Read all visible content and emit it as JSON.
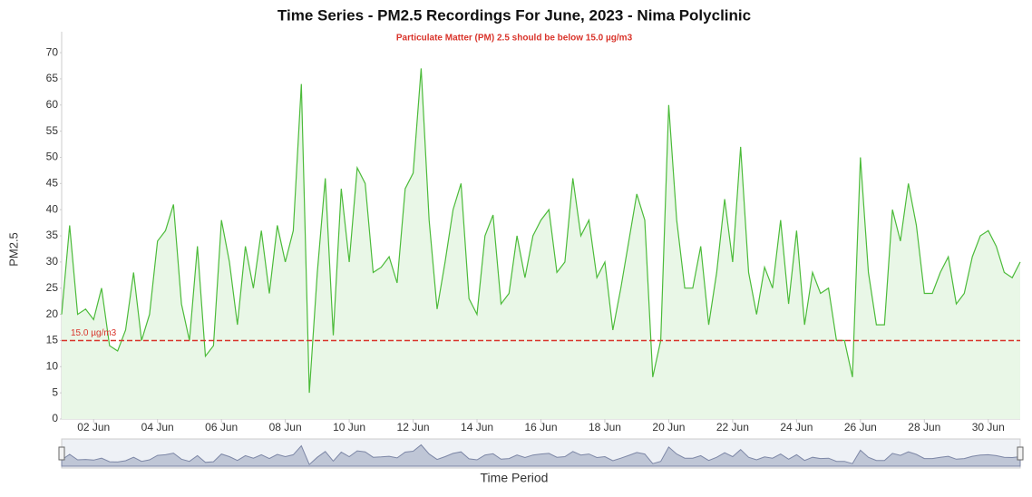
{
  "chart_data": {
    "type": "area",
    "title": "Time Series - PM2.5 Recordings For June, 2023 - Nima Polyclinic",
    "subtitle": "Particulate Matter (PM) 2.5 should be below 15.0 µg/m3",
    "y_label": "PM2.5",
    "x_label": "Time Period",
    "zoom_label": "30",
    "color": "#4cbb3a",
    "fill": "#e9f7e7",
    "threshold": {
      "value": 15,
      "label": "15.0 µg/m3",
      "color": "#d9342b"
    },
    "xlim": [
      1,
      31
    ],
    "xticks": [
      {
        "value": 2,
        "label": "02 Jun"
      },
      {
        "value": 4,
        "label": "04 Jun"
      },
      {
        "value": 6,
        "label": "06 Jun"
      },
      {
        "value": 8,
        "label": "08 Jun"
      },
      {
        "value": 10,
        "label": "10 Jun"
      },
      {
        "value": 12,
        "label": "12 Jun"
      },
      {
        "value": 14,
        "label": "14 Jun"
      },
      {
        "value": 16,
        "label": "16 Jun"
      },
      {
        "value": 18,
        "label": "18 Jun"
      },
      {
        "value": 20,
        "label": "20 Jun"
      },
      {
        "value": 22,
        "label": "22 Jun"
      },
      {
        "value": 24,
        "label": "24 Jun"
      },
      {
        "value": 26,
        "label": "26 Jun"
      },
      {
        "value": 28,
        "label": "28 Jun"
      },
      {
        "value": 30,
        "label": "30 Jun"
      }
    ],
    "ylim": [
      0,
      74
    ],
    "yticks": [
      0,
      5,
      10,
      15,
      20,
      25,
      30,
      35,
      40,
      45,
      50,
      55,
      60,
      65,
      70
    ],
    "x": [
      1,
      1.25,
      1.5,
      1.75,
      2,
      2.25,
      2.5,
      2.75,
      3,
      3.25,
      3.5,
      3.75,
      4,
      4.25,
      4.5,
      4.75,
      5,
      5.25,
      5.5,
      5.75,
      6,
      6.25,
      6.5,
      6.75,
      7,
      7.25,
      7.5,
      7.75,
      8,
      8.25,
      8.5,
      8.75,
      9,
      9.25,
      9.5,
      9.75,
      10,
      10.25,
      10.5,
      10.75,
      11,
      11.25,
      11.5,
      11.75,
      12,
      12.25,
      12.5,
      12.75,
      13,
      13.25,
      13.5,
      13.75,
      14,
      14.25,
      14.5,
      14.75,
      15,
      15.25,
      15.5,
      15.75,
      16,
      16.25,
      16.5,
      16.75,
      17,
      17.25,
      17.5,
      17.75,
      18,
      18.25,
      18.5,
      18.75,
      19,
      19.25,
      19.5,
      19.75,
      20,
      20.25,
      20.5,
      20.75,
      21,
      21.25,
      21.5,
      21.75,
      22,
      22.25,
      22.5,
      22.75,
      23,
      23.25,
      23.5,
      23.75,
      24,
      24.25,
      24.5,
      24.75,
      25,
      25.25,
      25.5,
      25.75,
      26,
      26.25,
      26.5,
      26.75,
      27,
      27.25,
      27.5,
      27.75,
      28,
      28.25,
      28.5,
      28.75,
      29,
      29.25,
      29.5,
      29.75,
      30,
      30.25,
      30.5,
      30.75,
      31
    ],
    "values": [
      20,
      37,
      20,
      21,
      19,
      25,
      14,
      13,
      17,
      28,
      15,
      20,
      34,
      36,
      41,
      22,
      15,
      33,
      12,
      14,
      38,
      30,
      18,
      33,
      25,
      36,
      24,
      37,
      30,
      36,
      64,
      5,
      28,
      46,
      16,
      44,
      30,
      48,
      45,
      28,
      29,
      31,
      26,
      44,
      47,
      67,
      38,
      21,
      30,
      40,
      45,
      23,
      20,
      35,
      39,
      22,
      24,
      35,
      27,
      35,
      38,
      40,
      28,
      30,
      46,
      35,
      38,
      27,
      30,
      17,
      25,
      34,
      43,
      38,
      8,
      15,
      60,
      38,
      25,
      25,
      33,
      18,
      28,
      42,
      30,
      52,
      28,
      20,
      29,
      25,
      38,
      22,
      36,
      18,
      28,
      24,
      25,
      15,
      15,
      8,
      50,
      28,
      18,
      18,
      40,
      34,
      45,
      37,
      24,
      24,
      28,
      31,
      22,
      24,
      31,
      35,
      36,
      33,
      28,
      27,
      30
    ]
  }
}
